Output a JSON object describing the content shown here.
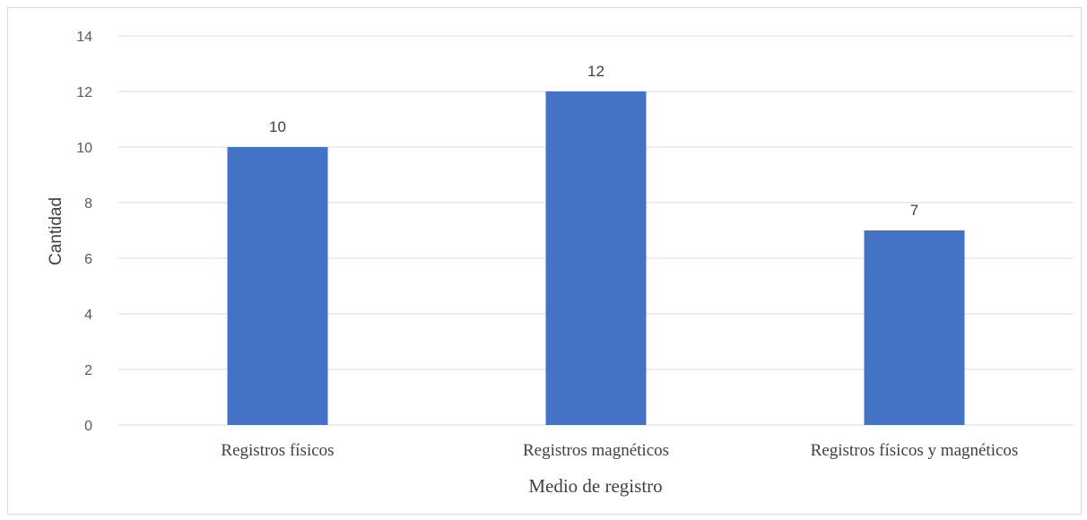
{
  "chart_data": {
    "type": "bar",
    "categories": [
      "Registros físicos",
      "Registros magnéticos",
      "Registros físicos y magnéticos"
    ],
    "values": [
      10,
      12,
      7
    ],
    "data_labels": [
      "10",
      "12",
      "7"
    ],
    "title": "",
    "xlabel": "Medio de registro",
    "ylabel": "Cantidad",
    "ylim": [
      0,
      14
    ],
    "yticks": [
      "0",
      "2",
      "4",
      "6",
      "8",
      "10",
      "12",
      "14"
    ],
    "grid": true,
    "legend": "none",
    "colors": {
      "bar": "#4472C4",
      "grid": "#d9d9d9",
      "text": "#404040",
      "tick": "#595959"
    }
  }
}
